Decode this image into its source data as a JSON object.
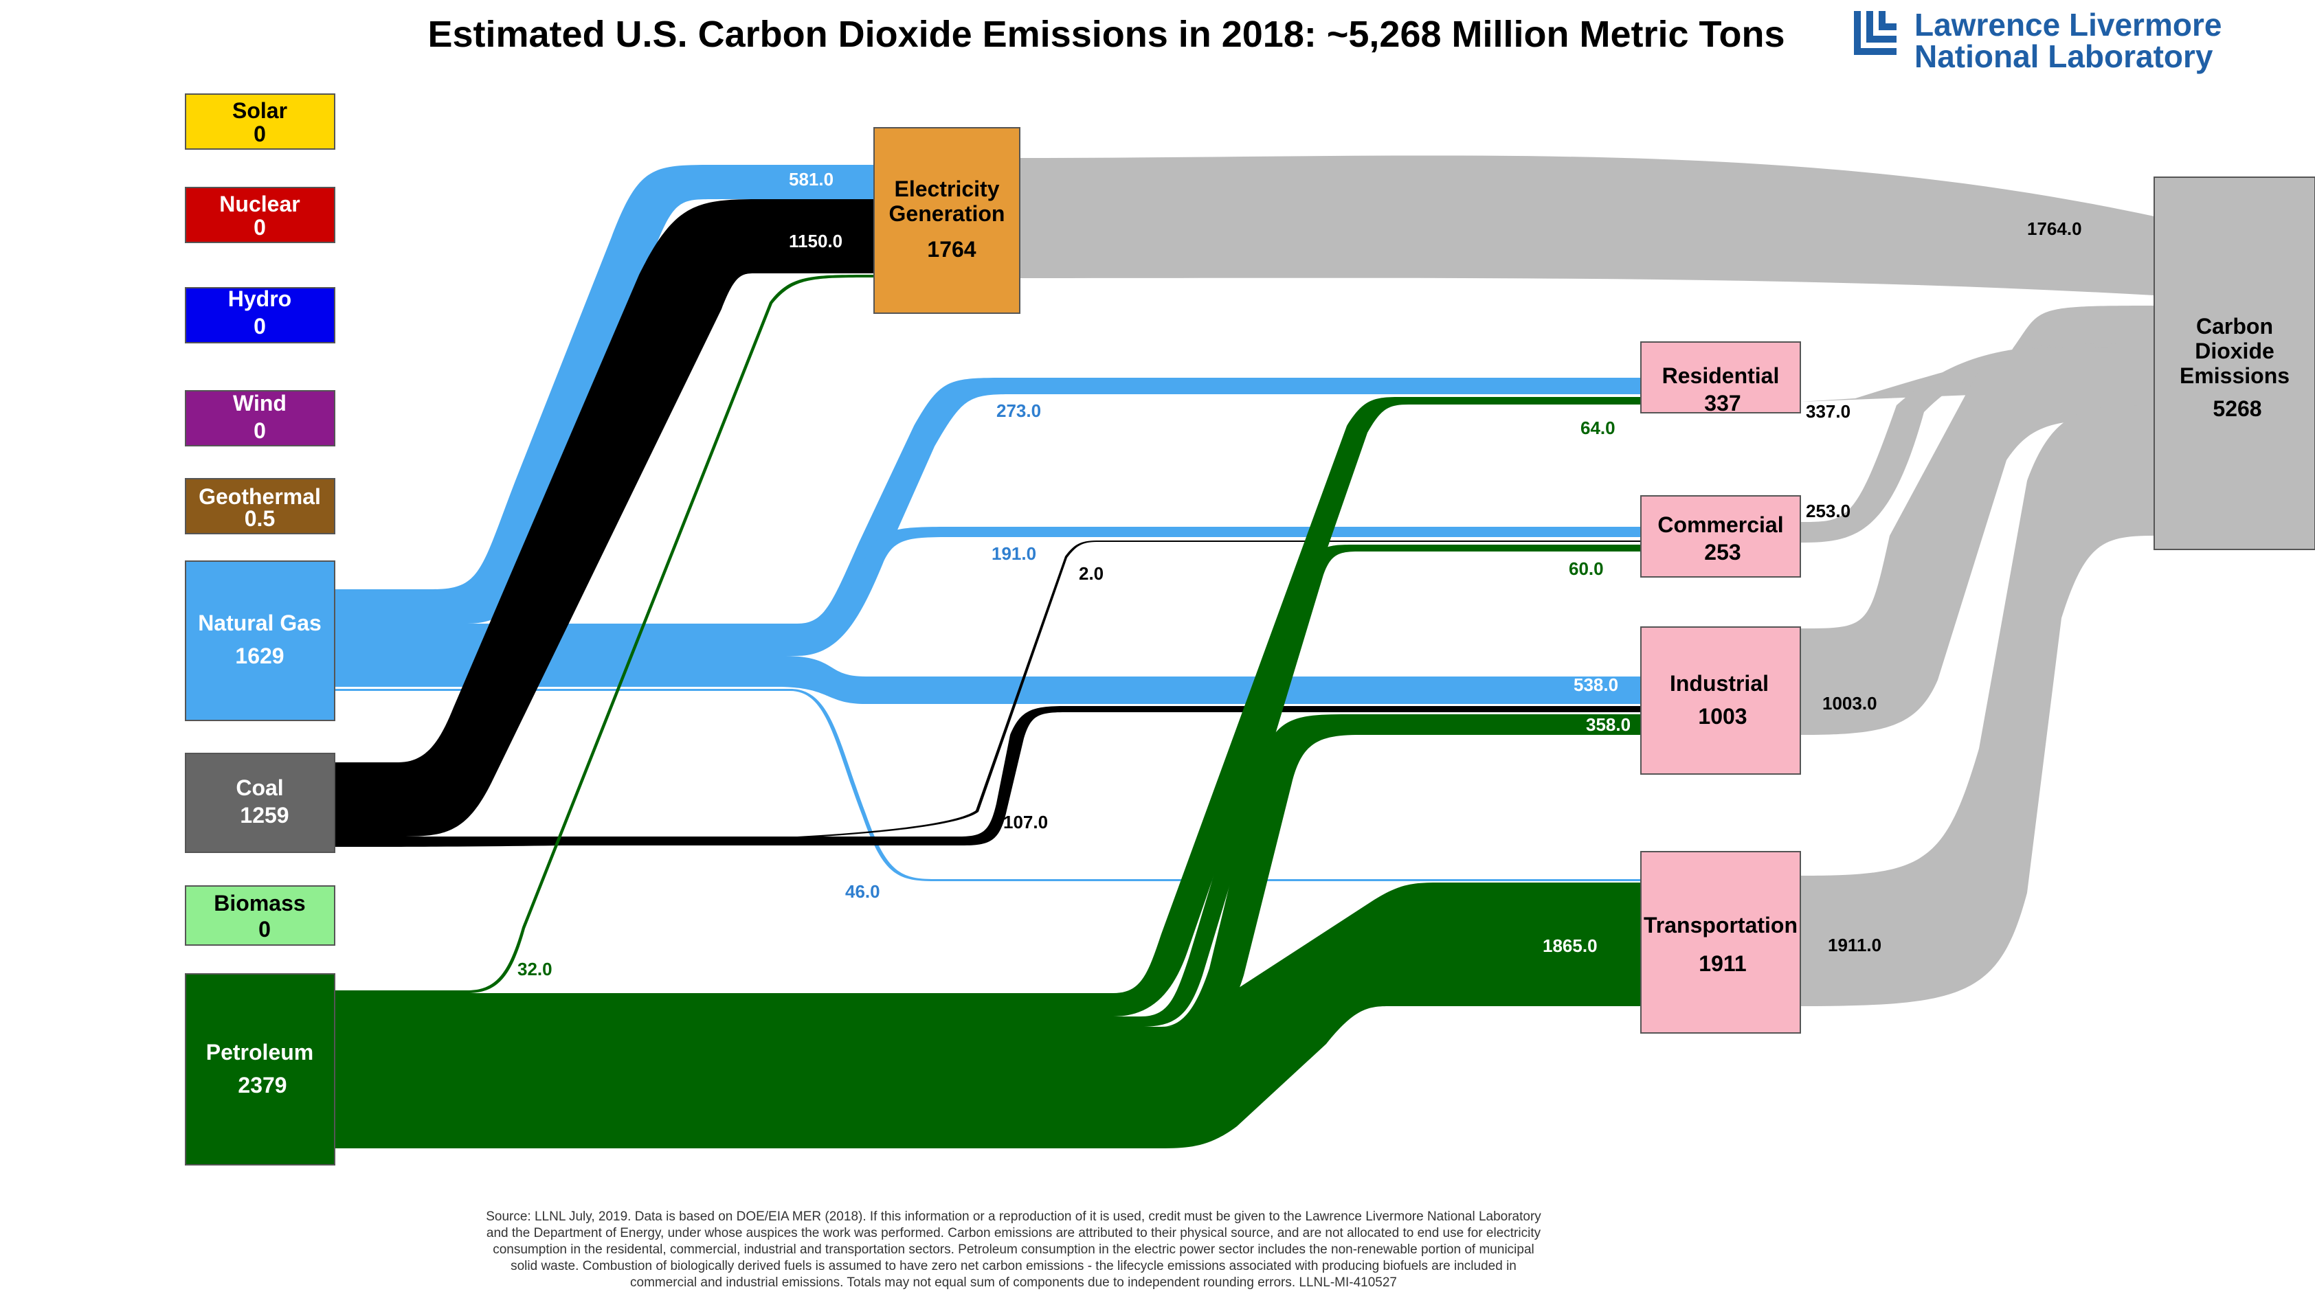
{
  "title": "Estimated U.S. Carbon Dioxide Emissions in 2018: ~5,268 Million Metric Tons",
  "logo": {
    "line1": "Lawrence Livermore",
    "line2": "National Laboratory"
  },
  "colors": {
    "natural_gas": "#4aa8f0",
    "coal": "#000000",
    "petroleum": "#006400",
    "emissions": "#bbbbbb",
    "electricity": "#e59a37",
    "end_use": "#f9b6c4"
  },
  "sources": [
    {
      "id": "solar",
      "label": "Solar",
      "value": "0",
      "color": "#ffd700",
      "text_color": "#000000"
    },
    {
      "id": "nuclear",
      "label": "Nuclear",
      "value": "0",
      "color": "#cc0000",
      "text_color": "#ffffff"
    },
    {
      "id": "hydro",
      "label": "Hydro",
      "value": "0",
      "color": "#0000ee",
      "text_color": "#ffffff"
    },
    {
      "id": "wind",
      "label": "Wind",
      "value": "0",
      "color": "#8b1a8b",
      "text_color": "#ffffff"
    },
    {
      "id": "geothermal",
      "label": "Geothermal",
      "value": "0.5",
      "color": "#8b5a1a",
      "text_color": "#ffffff"
    },
    {
      "id": "natural-gas",
      "label": "Natural Gas",
      "value": "1629",
      "color": "#4aa8f0",
      "text_color": "#ffffff"
    },
    {
      "id": "coal",
      "label": "Coal",
      "value": "1259",
      "color": "#666666",
      "text_color": "#ffffff"
    },
    {
      "id": "biomass",
      "label": "Biomass",
      "value": "0",
      "color": "#90ee90",
      "text_color": "#000000"
    },
    {
      "id": "petroleum",
      "label": "Petroleum",
      "value": "2379",
      "color": "#006400",
      "text_color": "#ffffff"
    }
  ],
  "electricity": {
    "label_line1": "Electricity",
    "label_line2": "Generation",
    "value": "1764"
  },
  "sectors": [
    {
      "id": "residential",
      "label": "Residential",
      "value": "337"
    },
    {
      "id": "commercial",
      "label": "Commercial",
      "value": "253"
    },
    {
      "id": "industrial",
      "label": "Industrial",
      "value": "1003"
    },
    {
      "id": "transportation",
      "label": "Transportation",
      "value": "1911"
    }
  ],
  "emissions": {
    "line1": "Carbon",
    "line2": "Dioxide",
    "line3": "Emissions",
    "value": "5268"
  },
  "flows": [
    {
      "from": "Natural Gas",
      "to": "Electricity Generation",
      "value": 581.0,
      "label": "581.0"
    },
    {
      "from": "Coal",
      "to": "Electricity Generation",
      "value": 1150.0,
      "label": "1150.0"
    },
    {
      "from": "Petroleum",
      "to": "Electricity Generation",
      "value": 32.0,
      "label": "32.0"
    },
    {
      "from": "Natural Gas",
      "to": "Residential",
      "value": 273.0,
      "label": "273.0"
    },
    {
      "from": "Petroleum",
      "to": "Residential",
      "value": 64.0,
      "label": "64.0"
    },
    {
      "from": "Natural Gas",
      "to": "Commercial",
      "value": 191.0,
      "label": "191.0"
    },
    {
      "from": "Coal",
      "to": "Commercial",
      "value": 2.0,
      "label": "2.0"
    },
    {
      "from": "Petroleum",
      "to": "Commercial",
      "value": 60.0,
      "label": "60.0"
    },
    {
      "from": "Natural Gas",
      "to": "Industrial",
      "value": 538.0,
      "label": "538.0"
    },
    {
      "from": "Coal",
      "to": "Industrial",
      "value": 107.0,
      "label": "107.0"
    },
    {
      "from": "Petroleum",
      "to": "Industrial",
      "value": 358.0,
      "label": "358.0"
    },
    {
      "from": "Natural Gas",
      "to": "Transportation",
      "value": 46.0,
      "label": "46.0"
    },
    {
      "from": "Petroleum",
      "to": "Transportation",
      "value": 1865.0,
      "label": "1865.0"
    },
    {
      "from": "Electricity Generation",
      "to": "Carbon Dioxide Emissions",
      "value": 1764.0,
      "label": "1764.0"
    },
    {
      "from": "Residential",
      "to": "Carbon Dioxide Emissions",
      "value": 337.0,
      "label": "337.0"
    },
    {
      "from": "Commercial",
      "to": "Carbon Dioxide Emissions",
      "value": 253.0,
      "label": "253.0"
    },
    {
      "from": "Industrial",
      "to": "Carbon Dioxide Emissions",
      "value": 1003.0,
      "label": "1003.0"
    },
    {
      "from": "Transportation",
      "to": "Carbon Dioxide Emissions",
      "value": 1911.0,
      "label": "1911.0"
    }
  ],
  "footnote": [
    "Source: LLNL July, 2019. Data is based on DOE/EIA MER (2018). If this information or a reproduction of it is used, credit must be given to the Lawrence Livermore National Laboratory",
    "and the Department of Energy, under whose auspices the work was performed. Carbon emissions are attributed to their physical source, and are not allocated to end use for electricity",
    "consumption in the residental, commercial, industrial and transportation sectors. Petroleum consumption in the electric power sector includes the non-renewable portion of municipal",
    "solid waste. Combustion of biologically derived fuels is assumed to have zero net carbon emissions - the lifecycle emissions associated with producing biofuels are included in",
    "commercial and industrial emissions. Totals may not equal sum of components due to independent rounding errors. LLNL-MI-410527"
  ]
}
